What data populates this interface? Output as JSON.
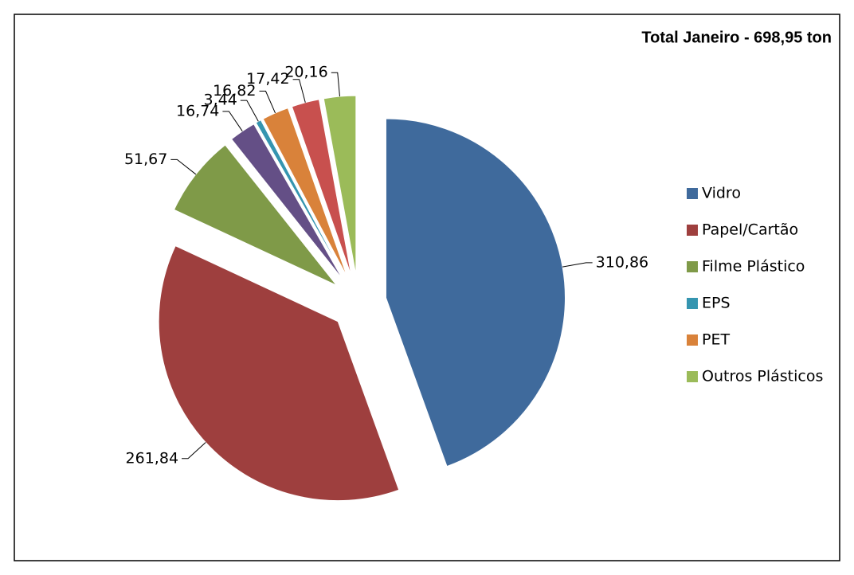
{
  "chart_data": {
    "type": "pie",
    "title": "Total Janeiro - 698,95 ton",
    "categories": [
      "Vidro",
      "Papel/Cartão",
      "Filme Plástico",
      null,
      "EPS",
      "PET",
      null,
      "Outros Plásticos"
    ],
    "values": [
      310.86,
      261.84,
      51.67,
      16.74,
      3.44,
      16.82,
      17.42,
      20.16
    ],
    "value_labels": [
      "310,86",
      "261,84",
      "51,67",
      "16,74",
      "3,44",
      "16,82",
      "17,42",
      "20,16"
    ],
    "colors": [
      "#3f6a9c",
      "#9e3f3e",
      "#7f9a48",
      "#644f86",
      "#3595b0",
      "#d9823a",
      "#c8504e",
      "#9bbb59"
    ],
    "legend": "right"
  }
}
